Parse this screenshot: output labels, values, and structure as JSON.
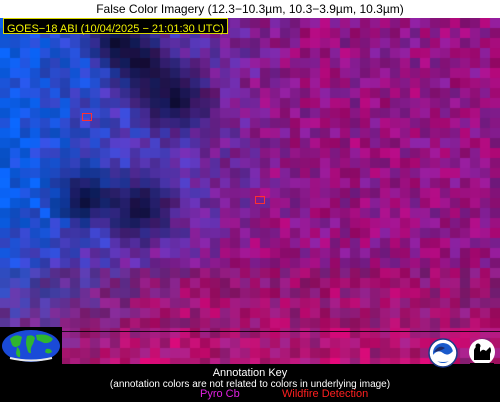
{
  "title": "False Color Imagery (12.3−10.3µm, 10.3−3.9µm, 10.3µm)",
  "satellite_label": "GOES−18 ABI (10/04/2025 − 21:01:30 UTC)",
  "annotation_key": {
    "title": "Annotation Key",
    "note": "(annotation colors are not related to colors in underlying image)",
    "pyro_cb": "Pyro Cb",
    "wildfire": "Wildfire Detection"
  },
  "colors": {
    "satellite_label_text": "#f5f500",
    "pyro_cb": "#e020e0",
    "wildfire_detection": "#ff2020"
  },
  "icons": [
    "globe-icon",
    "noaa-logo-icon",
    "cimss-logo-icon"
  ]
}
